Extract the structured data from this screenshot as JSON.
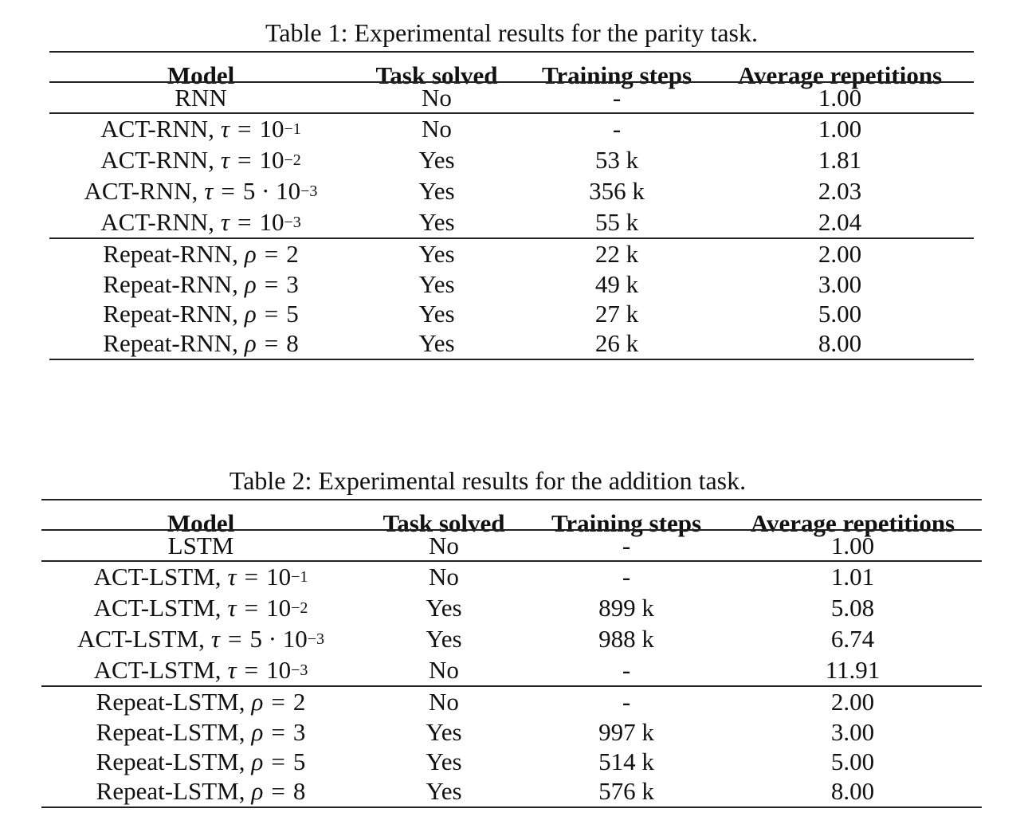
{
  "tables": [
    {
      "caption": "Table 1: Experimental results for the parity task.",
      "columns": [
        "Model",
        "Task solved",
        "Training steps",
        "Average repetitions"
      ],
      "rows": [
        {
          "prefix": "RNN",
          "var": "",
          "op": "",
          "base": "",
          "exp": "",
          "solved": "No",
          "steps": "-",
          "reps": "1.00"
        },
        {
          "prefix": "ACT-RNN,",
          "var": "τ",
          "op": "=",
          "base": "10",
          "exp": "−1",
          "solved": "No",
          "steps": "-",
          "reps": "1.00"
        },
        {
          "prefix": "ACT-RNN,",
          "var": "τ",
          "op": "=",
          "base": "10",
          "exp": "−2",
          "solved": "Yes",
          "steps": "53 k",
          "reps": "1.81"
        },
        {
          "prefix": "ACT-RNN,",
          "var": "τ",
          "op": "=",
          "base": "5 · 10",
          "exp": "−3",
          "solved": "Yes",
          "steps": "356 k",
          "reps": "2.03"
        },
        {
          "prefix": "ACT-RNN,",
          "var": "τ",
          "op": "=",
          "base": "10",
          "exp": "−3",
          "solved": "Yes",
          "steps": "55 k",
          "reps": "2.04"
        },
        {
          "prefix": "Repeat-RNN,",
          "var": "ρ",
          "op": "=",
          "base": "2",
          "exp": "",
          "solved": "Yes",
          "steps": "22 k",
          "reps": "2.00"
        },
        {
          "prefix": "Repeat-RNN,",
          "var": "ρ",
          "op": "=",
          "base": "3",
          "exp": "",
          "solved": "Yes",
          "steps": "49 k",
          "reps": "3.00"
        },
        {
          "prefix": "Repeat-RNN,",
          "var": "ρ",
          "op": "=",
          "base": "5",
          "exp": "",
          "solved": "Yes",
          "steps": "27 k",
          "reps": "5.00"
        },
        {
          "prefix": "Repeat-RNN,",
          "var": "ρ",
          "op": "=",
          "base": "8",
          "exp": "",
          "solved": "Yes",
          "steps": "26 k",
          "reps": "8.00"
        }
      ]
    },
    {
      "caption": "Table 2: Experimental results for the addition task.",
      "columns": [
        "Model",
        "Task solved",
        "Training steps",
        "Average repetitions"
      ],
      "rows": [
        {
          "prefix": "LSTM",
          "var": "",
          "op": "",
          "base": "",
          "exp": "",
          "solved": "No",
          "steps": "-",
          "reps": "1.00"
        },
        {
          "prefix": "ACT-LSTM,",
          "var": "τ",
          "op": "=",
          "base": "10",
          "exp": "−1",
          "solved": "No",
          "steps": "-",
          "reps": "1.01"
        },
        {
          "prefix": "ACT-LSTM,",
          "var": "τ",
          "op": "=",
          "base": "10",
          "exp": "−2",
          "solved": "Yes",
          "steps": "899 k",
          "reps": "5.08"
        },
        {
          "prefix": "ACT-LSTM,",
          "var": "τ",
          "op": "=",
          "base": "5 · 10",
          "exp": "−3",
          "solved": "Yes",
          "steps": "988 k",
          "reps": "6.74"
        },
        {
          "prefix": "ACT-LSTM,",
          "var": "τ",
          "op": "=",
          "base": "10",
          "exp": "−3",
          "solved": "No",
          "steps": "-",
          "reps": "11.91"
        },
        {
          "prefix": "Repeat-LSTM,",
          "var": "ρ",
          "op": "=",
          "base": "2",
          "exp": "",
          "solved": "No",
          "steps": "-",
          "reps": "2.00"
        },
        {
          "prefix": "Repeat-LSTM,",
          "var": "ρ",
          "op": "=",
          "base": "3",
          "exp": "",
          "solved": "Yes",
          "steps": "997 k",
          "reps": "3.00"
        },
        {
          "prefix": "Repeat-LSTM,",
          "var": "ρ",
          "op": "=",
          "base": "5",
          "exp": "",
          "solved": "Yes",
          "steps": "514 k",
          "reps": "5.00"
        },
        {
          "prefix": "Repeat-LSTM,",
          "var": "ρ",
          "op": "=",
          "base": "8",
          "exp": "",
          "solved": "Yes",
          "steps": "576 k",
          "reps": "8.00"
        }
      ]
    }
  ]
}
